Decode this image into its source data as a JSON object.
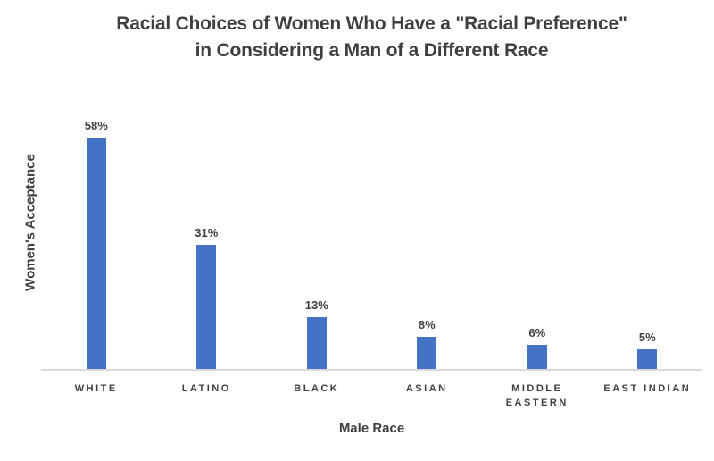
{
  "title": {
    "line1": "Racial Choices of Women Who Have a \"Racial Preference\"",
    "line2": "in Considering a Man of a Different Race"
  },
  "axes": {
    "y_label": "Women's Acceptance",
    "x_label": "Male Race"
  },
  "chart_data": {
    "type": "bar",
    "title": "Racial Choices of Women Who Have a \"Racial Preference\" in Considering a Man of a Different Race",
    "categories": [
      "WHITE",
      "LATINO",
      "BLACK",
      "ASIAN",
      "MIDDLE EASTERN",
      "EAST INDIAN"
    ],
    "values": [
      58,
      31,
      13,
      8,
      6,
      5
    ],
    "data_labels": [
      "58%",
      "31%",
      "13%",
      "8%",
      "6%",
      "5%"
    ],
    "xlabel": "Male Race",
    "ylabel": "Women's Acceptance",
    "ylim": [
      0,
      70
    ],
    "grid": false,
    "legend": false,
    "y_axis_ticks_visible": false,
    "bar_color": "#4472C4",
    "text_color": "#404040",
    "axis_line_color": "#D9D9D9",
    "background_color": "#FFFFFF"
  }
}
